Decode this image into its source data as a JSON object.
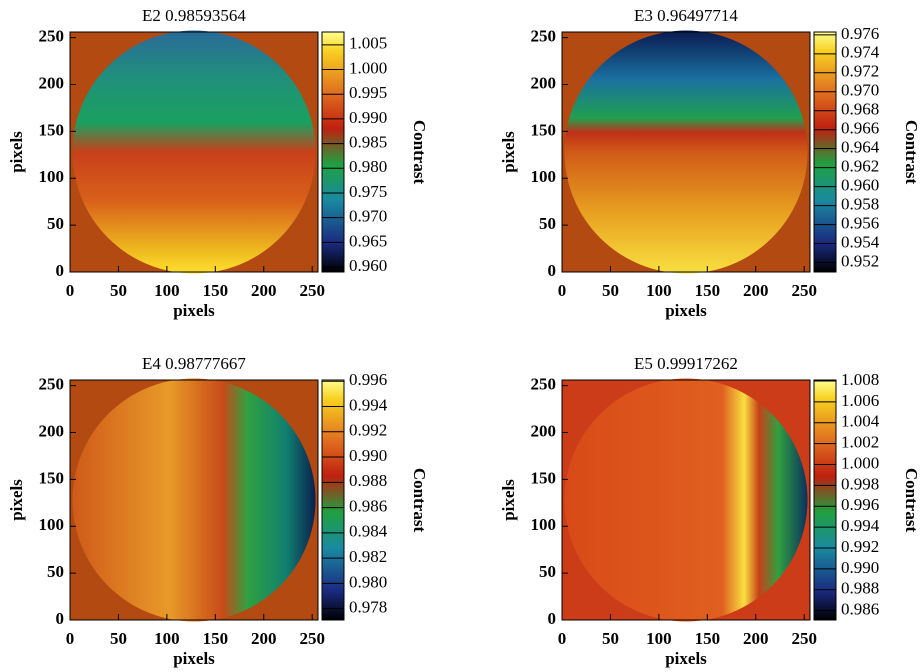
{
  "chart_data": [
    {
      "type": "heatmap",
      "title": "E2  0.98593564",
      "xlabel": "pixels",
      "ylabel": "pixels",
      "xlim": [
        0,
        256
      ],
      "ylim": [
        0,
        256
      ],
      "xticks": [
        0,
        50,
        100,
        150,
        200,
        250
      ],
      "yticks": [
        0,
        50,
        100,
        150,
        200,
        250
      ],
      "colorbar": {
        "label": "Contrast",
        "lim": [
          0.959,
          1.0076
        ],
        "ticks": [
          {
            "value": 0.96,
            "label": "0.960"
          },
          0.965,
          {
            "value": 0.97,
            "label": "0.970"
          },
          0.975,
          {
            "value": 0.98,
            "label": "0.980"
          },
          0.985,
          {
            "value": 0.99,
            "label": "0.990"
          },
          0.995,
          {
            "value": 1,
            "label": "1.000"
          },
          1.005
        ]
      }
    },
    {
      "type": "heatmap",
      "title": "E3  0.96497714",
      "xlabel": "pixels",
      "ylabel": "pixels",
      "xlim": [
        0,
        256
      ],
      "ylim": [
        0,
        256
      ],
      "xticks": [
        0,
        50,
        100,
        150,
        200,
        250
      ],
      "yticks": [
        0,
        50,
        100,
        150,
        200,
        250
      ],
      "colorbar": {
        "label": "Contrast",
        "lim": [
          0.951,
          0.9763
        ],
        "ticks": [
          0.952,
          0.954,
          0.956,
          0.958,
          {
            "value": 0.96,
            "label": "0.960"
          },
          0.962,
          0.964,
          0.966,
          0.968,
          {
            "value": 0.97,
            "label": "0.970"
          },
          0.972,
          0.974,
          0.976
        ]
      }
    },
    {
      "type": "heatmap",
      "title": "E4  0.98777667",
      "xlabel": "pixels",
      "ylabel": "pixels",
      "xlim": [
        0,
        256
      ],
      "ylim": [
        0,
        256
      ],
      "xticks": [
        0,
        50,
        100,
        150,
        200,
        250
      ],
      "yticks": [
        0,
        50,
        100,
        150,
        200,
        250
      ],
      "colorbar": {
        "label": "Contrast",
        "lim": [
          0.9771,
          0.9961
        ],
        "ticks": [
          0.978,
          {
            "value": 0.98,
            "label": "0.980"
          },
          0.982,
          0.984,
          0.986,
          0.988,
          {
            "value": 0.99,
            "label": "0.990"
          },
          0.992,
          0.994,
          0.996
        ]
      }
    },
    {
      "type": "heatmap",
      "title": "E5  0.99917262",
      "xlabel": "pixels",
      "ylabel": "pixels",
      "xlim": [
        0,
        256
      ],
      "ylim": [
        0,
        256
      ],
      "xticks": [
        0,
        50,
        100,
        150,
        200,
        250
      ],
      "yticks": [
        0,
        50,
        100,
        150,
        200,
        250
      ],
      "colorbar": {
        "label": "Contrast",
        "lim": [
          0.9851,
          1.0081
        ],
        "ticks": [
          0.986,
          0.988,
          {
            "value": 0.99,
            "label": "0.990"
          },
          0.992,
          0.994,
          0.996,
          0.998,
          {
            "value": 1,
            "label": "1.000"
          },
          1.002,
          1.004,
          1.006,
          1.008
        ]
      }
    }
  ]
}
